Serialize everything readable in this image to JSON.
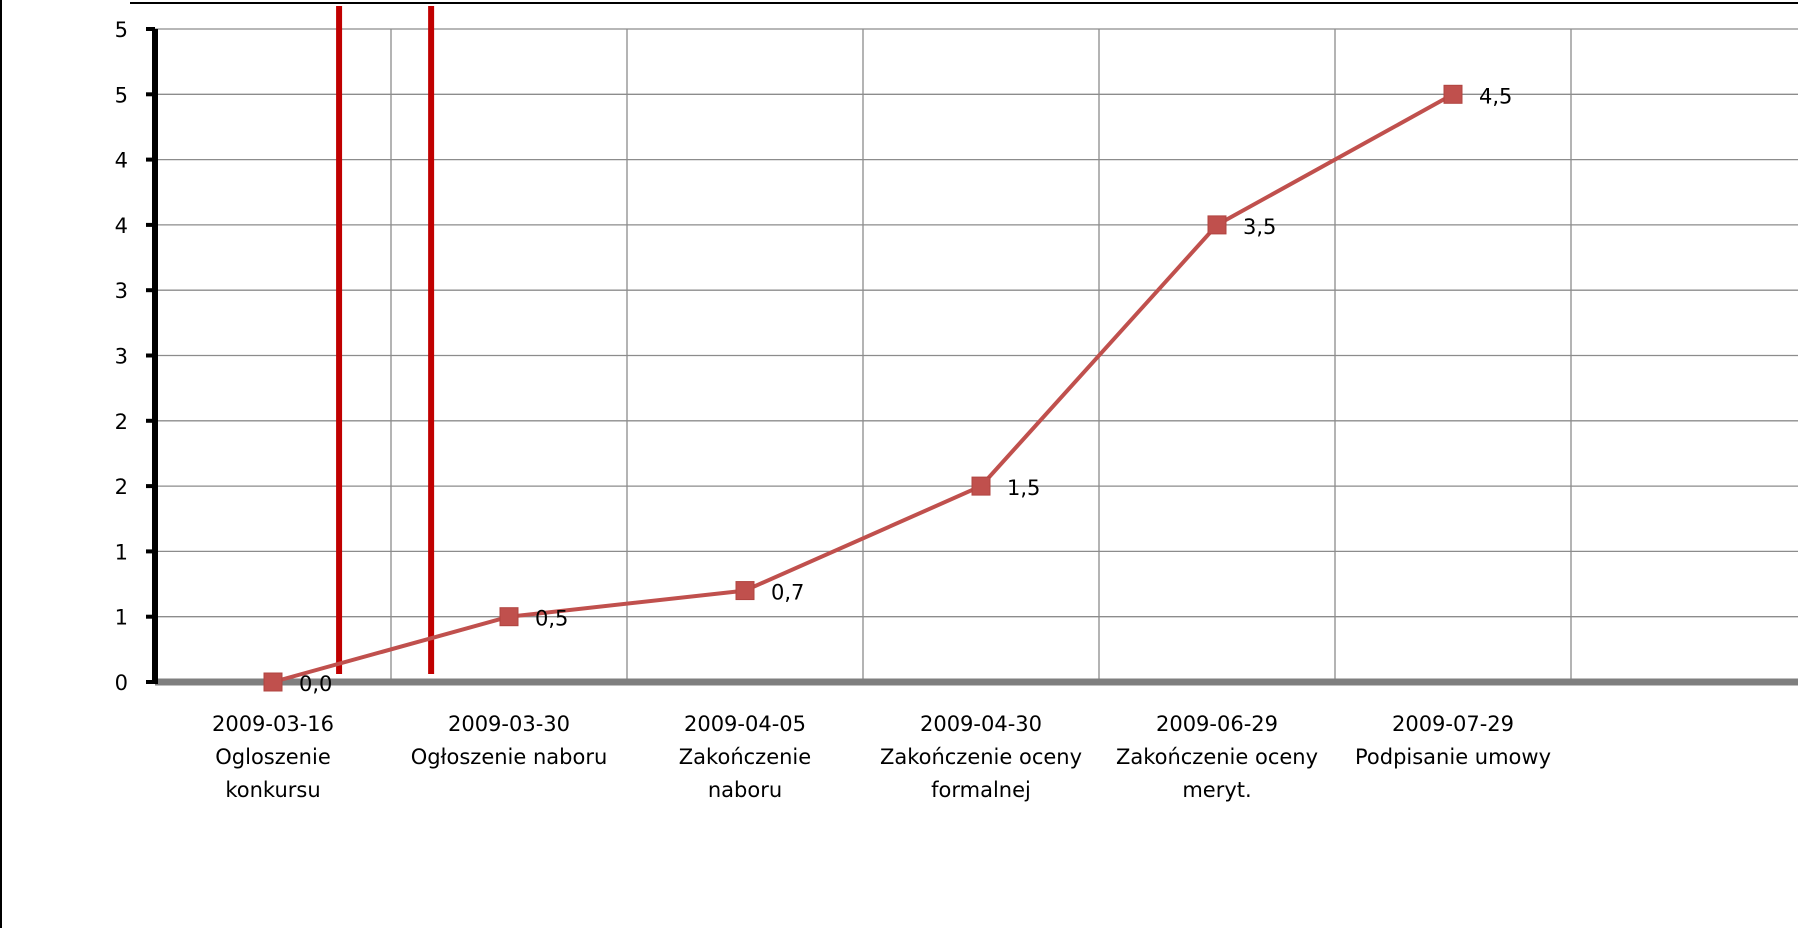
{
  "chart_data": {
    "type": "line",
    "categories": [
      [
        "2009-03-16",
        "Ogloszenie",
        "konkursu"
      ],
      [
        "2009-03-30",
        "Ogłoszenie naboru"
      ],
      [
        "2009-04-05",
        "Zakończenie",
        "naboru"
      ],
      [
        "2009-04-30",
        "Zakończenie oceny",
        "formalnej"
      ],
      [
        "2009-06-29",
        "Zakończenie oceny",
        "meryt."
      ],
      [
        "2009-07-29",
        "Podpisanie umowy"
      ]
    ],
    "series": [
      {
        "values": [
          0.0,
          0.5,
          0.7,
          1.5,
          3.5,
          4.5
        ],
        "data_labels": [
          "0,0",
          "0,5",
          "0,7",
          "1,5",
          "3,5",
          "4,5"
        ],
        "color": "#c0504d"
      }
    ],
    "ylim": [
      0,
      5
    ],
    "y_tick_values": [
      0,
      0.5,
      1,
      1.5,
      2,
      2.5,
      3,
      3.5,
      4,
      4.5,
      5
    ],
    "y_tick_labels": [
      "0",
      "1",
      "1",
      "2",
      "2",
      "3",
      "3",
      "4",
      "4",
      "5",
      "5"
    ],
    "grid": true,
    "vertical_markers": {
      "color": "#c00000",
      "category_positions": [
        0.78,
        1.17
      ]
    },
    "colors": {
      "grid": "#8c8c8c",
      "axis": "#000000",
      "baseline": "#7f7f7f"
    }
  }
}
